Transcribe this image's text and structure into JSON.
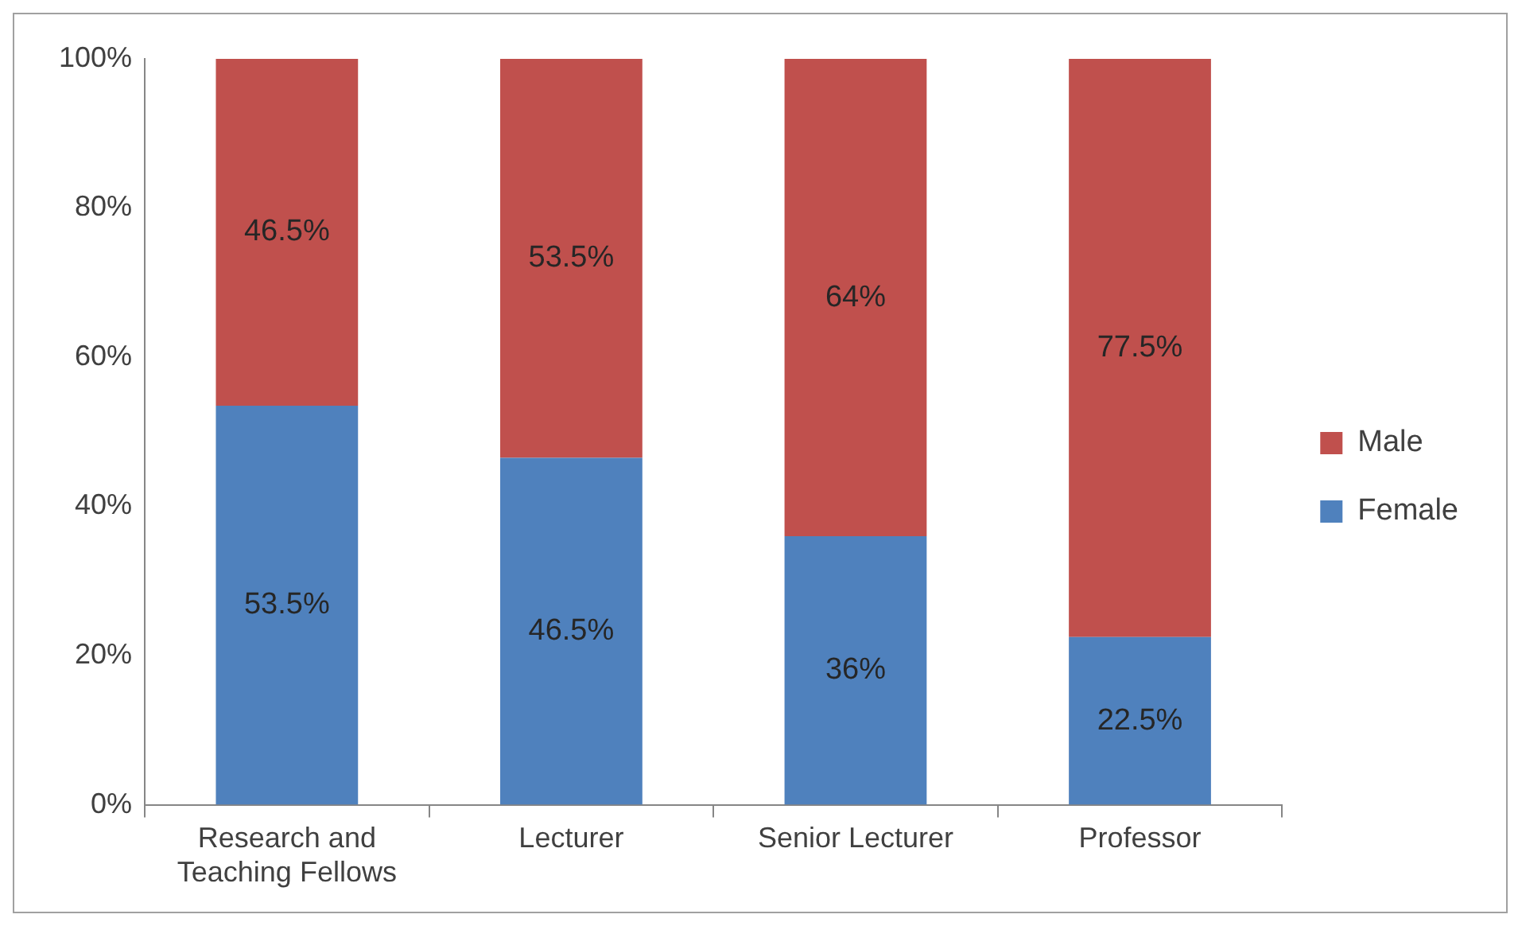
{
  "chart_data": {
    "type": "bar",
    "stacked": true,
    "categories": [
      "Research and Teaching Fellows",
      "Lecturer",
      "Senior Lecturer",
      "Professor"
    ],
    "series": [
      {
        "name": "Female",
        "color": "#4f81bd",
        "values": [
          53.5,
          46.5,
          36,
          22.5
        ],
        "value_labels": [
          "53.5%",
          "46.5%",
          "36%",
          "22.5%"
        ]
      },
      {
        "name": "Male",
        "color": "#c0504d",
        "values": [
          46.5,
          53.5,
          64,
          77.5
        ],
        "value_labels": [
          "46.5%",
          "53.5%",
          "64%",
          "77.5%"
        ]
      }
    ],
    "ylim": [
      0,
      100
    ],
    "yticks": [
      {
        "value": 0,
        "label": "0%"
      },
      {
        "value": 20,
        "label": "20%"
      },
      {
        "value": 40,
        "label": "40%"
      },
      {
        "value": 60,
        "label": "60%"
      },
      {
        "value": 80,
        "label": "80%"
      },
      {
        "value": 100,
        "label": "100%"
      }
    ],
    "grid": false,
    "legend": "right"
  }
}
